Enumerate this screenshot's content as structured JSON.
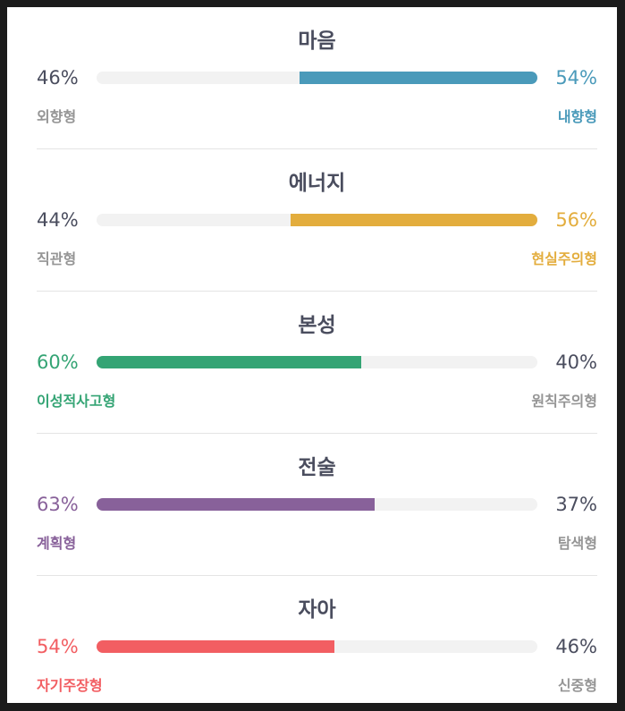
{
  "colors": {
    "neutral_text": "#4a4d5e",
    "neutral_label": "#959595",
    "track": "#f2f2f2"
  },
  "traits": [
    {
      "title": "마음",
      "left_pct": "46%",
      "right_pct": "54%",
      "left_label": "외향형",
      "right_label": "내향형",
      "dominant": "right",
      "value": 0.54,
      "color": "#4a9aba"
    },
    {
      "title": "에너지",
      "left_pct": "44%",
      "right_pct": "56%",
      "left_label": "직관형",
      "right_label": "현실주의형",
      "dominant": "right",
      "value": 0.56,
      "color": "#e3ad3d"
    },
    {
      "title": "본성",
      "left_pct": "60%",
      "right_pct": "40%",
      "left_label": "이성적사고형",
      "right_label": "원칙주의형",
      "dominant": "left",
      "value": 0.6,
      "color": "#34a474"
    },
    {
      "title": "전술",
      "left_pct": "63%",
      "right_pct": "37%",
      "left_label": "계획형",
      "right_label": "탐색형",
      "dominant": "left",
      "value": 0.63,
      "color": "#88619a"
    },
    {
      "title": "자아",
      "left_pct": "54%",
      "right_pct": "46%",
      "left_label": "자기주장형",
      "right_label": "신중형",
      "dominant": "left",
      "value": 0.54,
      "color": "#f25e62"
    }
  ]
}
